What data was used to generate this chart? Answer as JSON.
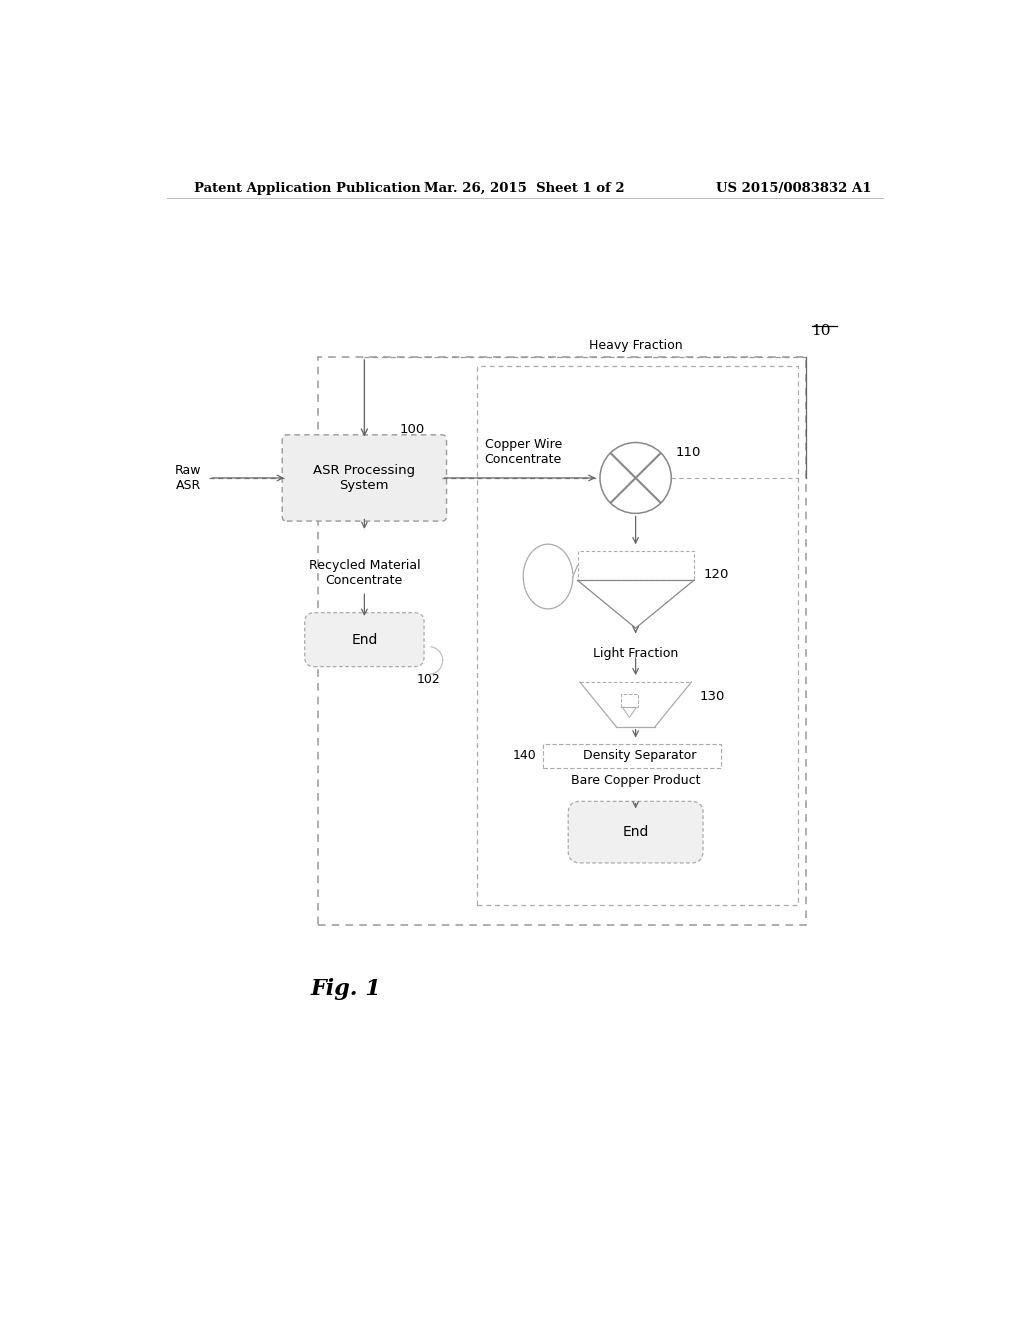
{
  "header_left": "Patent Application Publication",
  "header_center": "Mar. 26, 2015  Sheet 1 of 2",
  "header_right": "US 2015/0083832 A1",
  "figure_label": "Fig. 1",
  "system_number": "10",
  "node_100_label": "ASR Processing\nSystem",
  "node_100_id": "100",
  "node_110_label": "110",
  "node_120_label": "120",
  "node_130_label": "130",
  "node_140_label": "Density Separator",
  "node_140_id": "140",
  "label_raw_asr": "Raw\nASR",
  "label_copper_wire": "Copper Wire\nConcentrate",
  "label_recycled": "Recycled Material\nConcentrate",
  "label_heavy_fraction": "Heavy Fraction",
  "label_light_fraction": "Light Fraction",
  "label_bare_copper": "Bare Copper Product",
  "label_102": "102",
  "end_label": "End",
  "bg_color": "#ffffff",
  "text_color": "#000000"
}
